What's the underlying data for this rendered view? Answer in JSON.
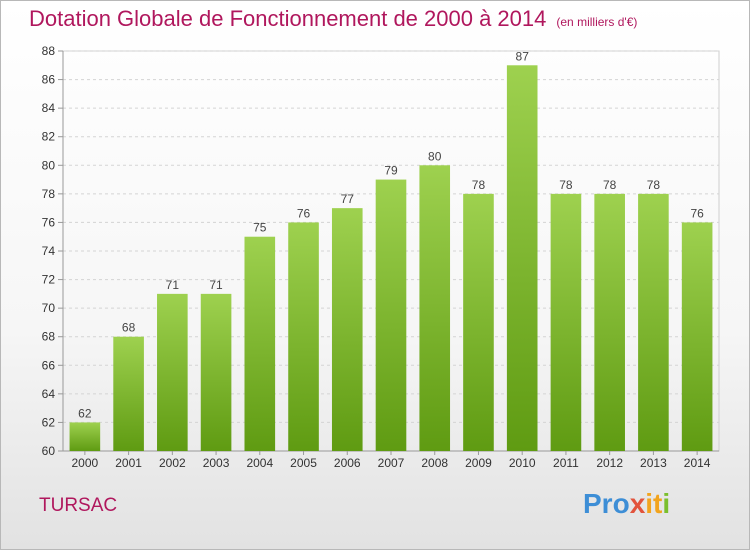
{
  "title": "Dotation Globale de Fonctionnement de 2000 à 2014",
  "unit": "(en milliers d'€)",
  "city": "TURSAC",
  "logo": {
    "text": "Proxiti",
    "parts": [
      "Pro",
      "x",
      "it",
      "i"
    ]
  },
  "colors": {
    "title": "#b0175d",
    "bar_top": "#9ed14f",
    "bar_bottom": "#5f9b12"
  },
  "chart_data": {
    "type": "bar",
    "categories": [
      "2000",
      "2001",
      "2002",
      "2003",
      "2004",
      "2005",
      "2006",
      "2007",
      "2008",
      "2009",
      "2010",
      "2011",
      "2012",
      "2013",
      "2014"
    ],
    "values": [
      62,
      68,
      71,
      71,
      75,
      76,
      77,
      79,
      80,
      78,
      87,
      78,
      78,
      78,
      76
    ],
    "ylim": [
      60,
      88
    ],
    "yticks": [
      60,
      62,
      64,
      66,
      68,
      70,
      72,
      74,
      76,
      78,
      80,
      82,
      84,
      86,
      88
    ],
    "grid": true,
    "legend": "none"
  }
}
